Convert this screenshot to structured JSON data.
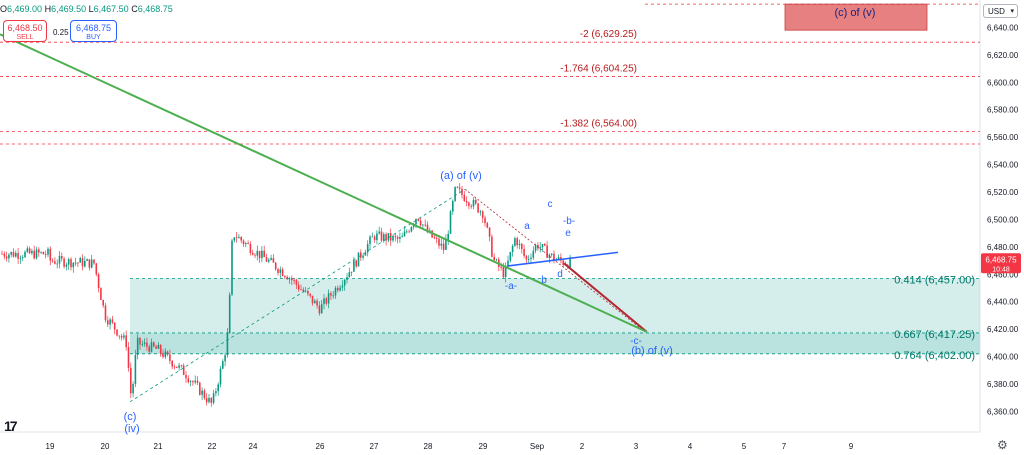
{
  "header": {
    "ohlc": [
      {
        "k": "O",
        "v": "6,469.00"
      },
      {
        "k": "H",
        "v": "6,469.50"
      },
      {
        "k": "L",
        "v": "6,467.50"
      },
      {
        "k": "C",
        "v": "6,468.75"
      }
    ]
  },
  "trade": {
    "sell_price": "6,468.50",
    "sell_label": "SELL",
    "spread": "0.25",
    "buy_price": "6,468.75",
    "buy_label": "BUY"
  },
  "currency": "USD",
  "colors": {
    "up": "#089981",
    "down": "#f23645",
    "wave_label": "#2962ff",
    "zone": "#b2dfdb",
    "level_line": "#f23645",
    "fib_text": "#089981",
    "projection_up": "#4caf50",
    "projection_down": "#b22833",
    "target_box": "#e57373"
  },
  "chart_data": {
    "type": "candlestick",
    "ylim": [
      6345,
      6660
    ],
    "y_ticks": [
      "6,660.00",
      "6,640.00",
      "6,620.00",
      "6,600.00",
      "6,580.00",
      "6,560.00",
      "6,540.00",
      "6,520.00",
      "6,500.00",
      "6,480.00",
      "6,460.00",
      "6,440.00",
      "6,420.00",
      "6,400.00",
      "6,380.00",
      "6,360.00"
    ],
    "x_ticks": [
      "19",
      "20",
      "21",
      "22",
      "24",
      "26",
      "27",
      "28",
      "29",
      "Sep",
      "2",
      "3",
      "4",
      "5",
      "7",
      "9"
    ],
    "last_price": {
      "value": "6,468.75",
      "timer": "10:48"
    },
    "price_path": [
      [
        "19",
        6475
      ],
      [
        "19",
        6470
      ],
      [
        "19.8",
        6468
      ],
      [
        "20",
        6430
      ],
      [
        "20.4",
        6410
      ],
      [
        "20.5",
        6368
      ],
      [
        "20.6",
        6410
      ],
      [
        "21",
        6405
      ],
      [
        "21.5",
        6388
      ],
      [
        "22",
        6365
      ],
      [
        "22.3",
        6400
      ],
      [
        "22.4",
        6420
      ],
      [
        "22.5",
        6490
      ],
      [
        "24",
        6478
      ],
      [
        "24.5",
        6460
      ],
      [
        "26",
        6435
      ],
      [
        "26.5",
        6460
      ],
      [
        "27",
        6488
      ],
      [
        "27.5",
        6485
      ],
      [
        "27.8",
        6503
      ],
      [
        "28",
        6490
      ],
      [
        "28.3",
        6478
      ],
      [
        "28.5",
        6522
      ],
      [
        "28.8",
        6512
      ],
      [
        "29",
        6505
      ],
      [
        "29.2",
        6470
      ],
      [
        "29.4",
        6460
      ],
      [
        "29.6",
        6487
      ],
      [
        "29.8",
        6470
      ],
      [
        "Sep",
        6482
      ],
      [
        "Sep.3",
        6472
      ],
      [
        "Sep.5",
        6468.75
      ]
    ],
    "levels": [
      {
        "label": "-2 (6,629.25)",
        "value": 6629.25
      },
      {
        "label": "-1.764 (6,604.25)",
        "value": 6604.25
      },
      {
        "label": "-1.382 (6,564.00)",
        "value": 6564.0
      },
      {
        "label": "0.414 (6,457.00)",
        "value": 6457.0
      },
      {
        "label": "0.667 (6,417.25)",
        "value": 6417.25
      },
      {
        "label": "0.764 (6,402.00)",
        "value": 6402.0
      }
    ],
    "zones": [
      {
        "from": 6417.25,
        "to": 6457.0
      },
      {
        "from": 6402.0,
        "to": 6417.25
      }
    ],
    "wave_labels": [
      "(c)",
      "(iv)",
      "(a) of (v)",
      "-a-",
      "a",
      "b",
      "c",
      "d",
      "e",
      "-b-",
      "-c-",
      "(b) of (v)",
      "(c) of (v)"
    ],
    "projection": {
      "down": [
        [
          "Sep.5",
          6468
        ],
        [
          "3.2",
          6418
        ]
      ],
      "up": [
        [
          "3.2",
          6418
        ],
        [
          "8.7",
          6635
        ]
      ]
    }
  }
}
